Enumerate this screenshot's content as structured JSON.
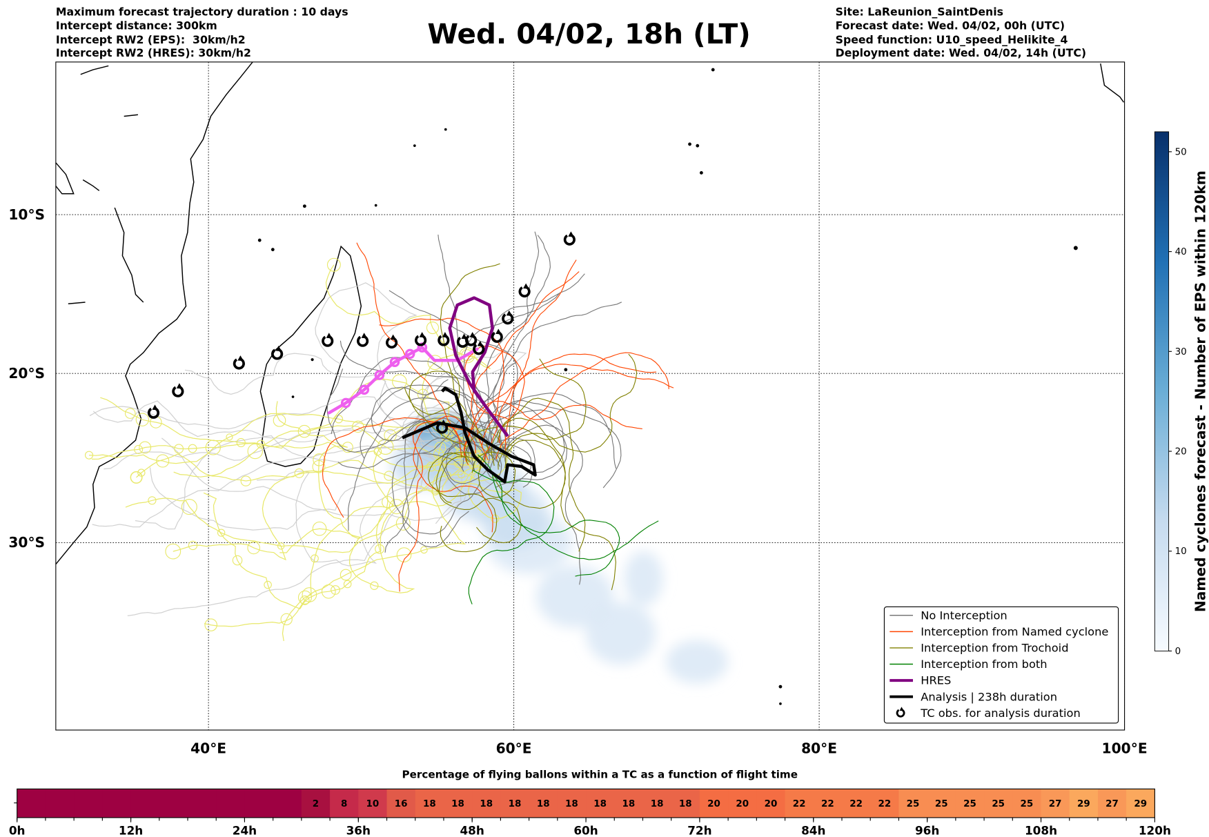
{
  "header": {
    "left": [
      "Maximum forecast trajectory duration : 10 days",
      "Intercept distance: 300km",
      "Intercept RW2 (EPS):  30km/h2",
      "Intercept RW2 (HRES): 30km/h2"
    ],
    "title": "Wed. 04/02, 18h (LT)",
    "right": [
      "Site: LaReunion_SaintDenis",
      "Forecast date: Wed. 04/02, 00h (UTC)",
      "Speed function: U10_speed_Helikite_4",
      "Deployment date: Wed. 04/02, 14h (UTC)"
    ]
  },
  "chart_data": [
    {
      "type": "line",
      "title": "Wed. 04/02, 18h (LT)",
      "map": {
        "lon_range": [
          30,
          100
        ],
        "lat_range": [
          -40.5,
          0
        ],
        "grid": true
      },
      "x_ticks": [
        "40°E",
        "60°E",
        "80°E",
        "100°E"
      ],
      "x_tick_values": [
        40,
        60,
        80,
        100
      ],
      "y_ticks": [
        "10°S",
        "20°S",
        "30°S"
      ],
      "y_tick_values": [
        -10,
        -20,
        -30
      ],
      "legend": {
        "placement": "bottom-right",
        "entries": [
          {
            "label": "No Interception",
            "color": "#777777"
          },
          {
            "label": "Interception from Named cyclone",
            "color": "#ff4500"
          },
          {
            "label": "Interception from Trochoid",
            "color": "#808000"
          },
          {
            "label": "Interception from both",
            "color": "#008000"
          },
          {
            "label": "HRES",
            "color": "#800080"
          },
          {
            "label": "Analysis | 238h duration",
            "color": "#000000"
          },
          {
            "label": "TC obs. for analysis duration",
            "color": "#000000",
            "symbol": "↺"
          }
        ]
      },
      "analysis_track": [
        [
          52.7,
          -23.9
        ],
        [
          55.0,
          -23.0
        ],
        [
          56.8,
          -23.3
        ],
        [
          58.3,
          -24.2
        ],
        [
          59.85,
          -25.0
        ],
        [
          61.3,
          -25.5
        ],
        [
          61.4,
          -26.1
        ],
        [
          60.5,
          -25.6
        ],
        [
          59.6,
          -25.5
        ],
        [
          59.4,
          -26.5
        ],
        [
          58.3,
          -25.8
        ],
        [
          57.4,
          -25.0
        ],
        [
          56.8,
          -23.6
        ],
        [
          56.55,
          -22.4
        ],
        [
          56.2,
          -21.3
        ],
        [
          55.5,
          -20.9
        ],
        [
          55.3,
          -21.1
        ]
      ],
      "hres_track": [
        [
          59.6,
          -23.8
        ],
        [
          58.3,
          -22.2
        ],
        [
          57.1,
          -20.6
        ],
        [
          56.2,
          -18.9
        ],
        [
          55.8,
          -17.2
        ],
        [
          56.3,
          -15.75
        ],
        [
          57.4,
          -15.3
        ],
        [
          58.4,
          -15.75
        ],
        [
          58.6,
          -17.2
        ],
        [
          58.1,
          -18.7
        ],
        [
          57.3,
          -19.9
        ],
        [
          57.4,
          -21.05
        ],
        [
          58.3,
          -22.2
        ],
        [
          59.6,
          -23.8
        ]
      ],
      "pink_track": [
        [
          47.9,
          -22.4
        ],
        [
          49.0,
          -21.8
        ],
        [
          50.2,
          -21.0
        ],
        [
          51.2,
          -20.1
        ],
        [
          52.2,
          -19.3
        ],
        [
          53.2,
          -18.8
        ],
        [
          54.0,
          -18.4
        ],
        [
          54.8,
          -19.2
        ],
        [
          56.3,
          -19.2
        ],
        [
          57.6,
          -18.5
        ]
      ],
      "tc_obs": [
        [
          36.4,
          -22.4
        ],
        [
          38.0,
          -21.1
        ],
        [
          42.0,
          -19.4
        ],
        [
          44.5,
          -18.8
        ],
        [
          47.8,
          -18.0
        ],
        [
          50.1,
          -18.0
        ],
        [
          52.0,
          -18.1
        ],
        [
          53.9,
          -17.95
        ],
        [
          55.4,
          -17.95
        ],
        [
          56.65,
          -18.05
        ],
        [
          57.2,
          -17.95
        ],
        [
          57.7,
          -18.5
        ],
        [
          58.9,
          -17.75
        ],
        [
          59.6,
          -16.6
        ],
        [
          60.7,
          -14.9
        ],
        [
          63.65,
          -11.6
        ],
        [
          55.3,
          -23.3
        ]
      ],
      "colorbar": {
        "label": "Named cyclones forecast - Number of EPS within 120km",
        "ticks": [
          0,
          10,
          20,
          30,
          40,
          50
        ],
        "range": [
          0,
          52
        ],
        "cmap": "Blues"
      }
    },
    {
      "type": "heatmap",
      "title": "Percentage of flying ballons within a TC as a function of flight time",
      "x_ticks": [
        "0h",
        "12h",
        "24h",
        "36h",
        "48h",
        "60h",
        "72h",
        "84h",
        "96h",
        "108h",
        "120h"
      ],
      "bin_hours": 3,
      "values": [
        0,
        0,
        0,
        0,
        0,
        0,
        0,
        0,
        0,
        0,
        2,
        8,
        10,
        16,
        18,
        18,
        18,
        18,
        18,
        18,
        18,
        18,
        18,
        18,
        20,
        20,
        20,
        22,
        22,
        22,
        22,
        25,
        25,
        25,
        25,
        25,
        27,
        29,
        27,
        29
      ],
      "show_label_from_index": 10
    }
  ]
}
